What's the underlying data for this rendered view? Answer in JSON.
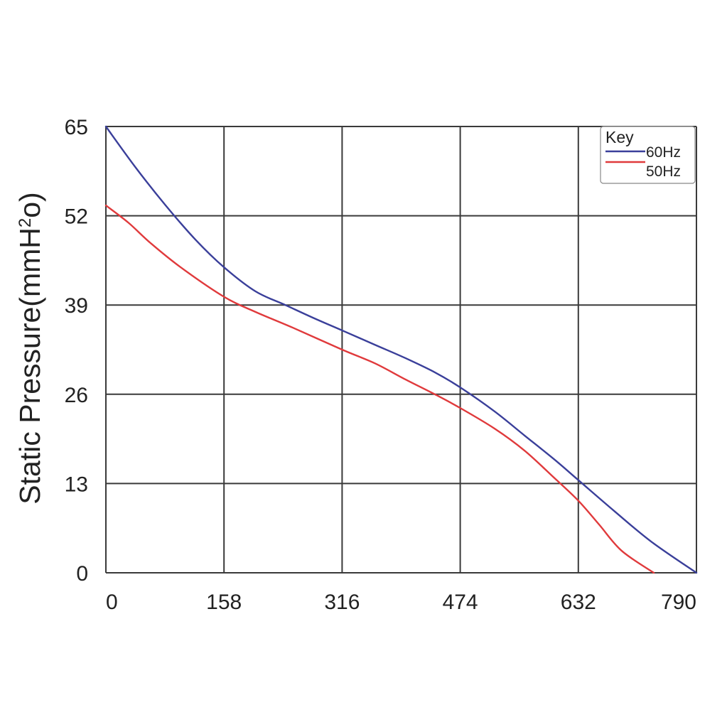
{
  "chart_data": {
    "type": "line",
    "title": "",
    "xlabel": "",
    "ylabel": "Static Pressure(mmH",
    "ylabel_sup": "2",
    "ylabel_tail": "o)",
    "xlim": [
      0,
      790
    ],
    "ylim": [
      0,
      65
    ],
    "x_ticks": [
      "0",
      "158",
      "316",
      "474",
      "632",
      "790"
    ],
    "y_ticks": [
      "0",
      "13",
      "26",
      "39",
      "52",
      "65"
    ],
    "grid": true,
    "legend": {
      "title": "Key",
      "placement": "top-right"
    },
    "series": [
      {
        "name": "60Hz",
        "color": "#3a3f9a",
        "points": [
          [
            0,
            65
          ],
          [
            40,
            59
          ],
          [
            80,
            53.5
          ],
          [
            120,
            48.5
          ],
          [
            158,
            44.5
          ],
          [
            200,
            41
          ],
          [
            240,
            39
          ],
          [
            280,
            37
          ],
          [
            316,
            35.3
          ],
          [
            360,
            33.2
          ],
          [
            400,
            31.3
          ],
          [
            440,
            29.2
          ],
          [
            474,
            27
          ],
          [
            520,
            23.5
          ],
          [
            560,
            20
          ],
          [
            600,
            16.5
          ],
          [
            632,
            13.5
          ],
          [
            680,
            9
          ],
          [
            730,
            4.5
          ],
          [
            790,
            0
          ]
        ]
      },
      {
        "name": "50Hz",
        "color": "#e03a3c",
        "points": [
          [
            0,
            53.5
          ],
          [
            30,
            51
          ],
          [
            60,
            48
          ],
          [
            100,
            44.5
          ],
          [
            158,
            40.2
          ],
          [
            200,
            38
          ],
          [
            250,
            35.7
          ],
          [
            316,
            32.5
          ],
          [
            360,
            30.5
          ],
          [
            400,
            28.2
          ],
          [
            440,
            26
          ],
          [
            474,
            24
          ],
          [
            520,
            21
          ],
          [
            560,
            17.8
          ],
          [
            600,
            13.8
          ],
          [
            632,
            10.5
          ],
          [
            660,
            7
          ],
          [
            690,
            3.2
          ],
          [
            733,
            0
          ]
        ]
      }
    ]
  }
}
